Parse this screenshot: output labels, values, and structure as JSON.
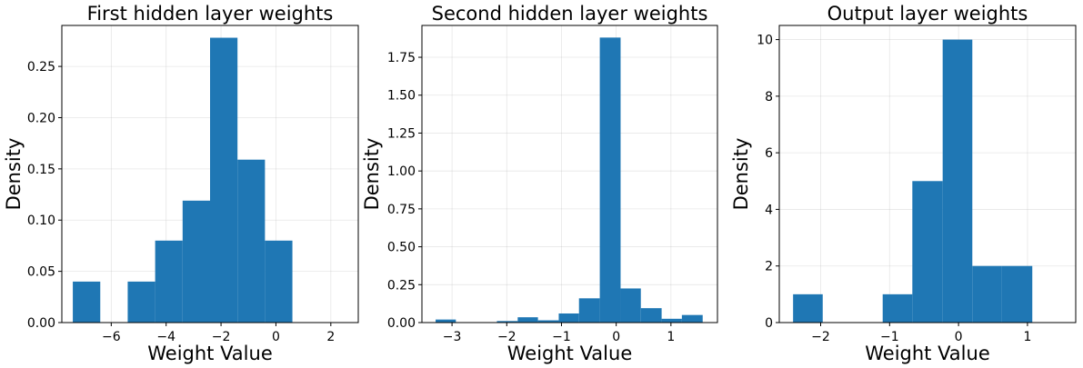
{
  "chart_data": [
    {
      "type": "bar",
      "title": "First hidden layer weights",
      "xlabel": "Weight Value",
      "ylabel": "Density",
      "xlim": [
        -7.8,
        3.0
      ],
      "ylim": [
        0,
        0.29
      ],
      "xticks": [
        -6,
        -4,
        -2,
        0,
        2
      ],
      "xtick_labels": [
        "−6",
        "−4",
        "−2",
        "0",
        "2"
      ],
      "yticks": [
        0,
        0.05,
        0.1,
        0.15,
        0.2,
        0.25
      ],
      "ytick_labels": [
        "0.00",
        "0.05",
        "0.10",
        "0.15",
        "0.20",
        "0.25"
      ],
      "grid": true,
      "color": "#1f77b4",
      "bins": [
        {
          "x0": -7.4,
          "x1": -6.4,
          "value": 0.04
        },
        {
          "x0": -6.4,
          "x1": -5.4,
          "value": 0.0
        },
        {
          "x0": -5.4,
          "x1": -4.4,
          "value": 0.04
        },
        {
          "x0": -4.4,
          "x1": -3.4,
          "value": 0.08
        },
        {
          "x0": -3.4,
          "x1": -2.4,
          "value": 0.119
        },
        {
          "x0": -2.4,
          "x1": -1.4,
          "value": 0.278
        },
        {
          "x0": -1.4,
          "x1": -0.4,
          "value": 0.159
        },
        {
          "x0": -0.4,
          "x1": 0.6,
          "value": 0.08
        }
      ]
    },
    {
      "type": "bar",
      "title": "Second hidden layer weights",
      "xlabel": "Weight Value",
      "ylabel": "Density",
      "xlim": [
        -3.55,
        1.85
      ],
      "ylim": [
        0,
        1.96
      ],
      "xticks": [
        -3,
        -2,
        -1,
        0,
        1
      ],
      "xtick_labels": [
        "−3",
        "−2",
        "−1",
        "0",
        "1"
      ],
      "yticks": [
        0,
        0.25,
        0.5,
        0.75,
        1.0,
        1.25,
        1.5,
        1.75
      ],
      "ytick_labels": [
        "0.00",
        "0.25",
        "0.50",
        "0.75",
        "1.00",
        "1.25",
        "1.50",
        "1.75"
      ],
      "grid": true,
      "color": "#1f77b4",
      "bins": [
        {
          "x0": -3.3,
          "x1": -2.93,
          "value": 0.02
        },
        {
          "x0": -2.93,
          "x1": -2.55,
          "value": 0.0
        },
        {
          "x0": -2.55,
          "x1": -2.18,
          "value": 0.0
        },
        {
          "x0": -2.18,
          "x1": -1.8,
          "value": 0.01
        },
        {
          "x0": -1.8,
          "x1": -1.43,
          "value": 0.035
        },
        {
          "x0": -1.43,
          "x1": -1.05,
          "value": 0.015
        },
        {
          "x0": -1.05,
          "x1": -0.68,
          "value": 0.06
        },
        {
          "x0": -0.68,
          "x1": -0.3,
          "value": 0.16
        },
        {
          "x0": -0.3,
          "x1": 0.08,
          "value": 1.88
        },
        {
          "x0": 0.08,
          "x1": 0.45,
          "value": 0.225
        },
        {
          "x0": 0.45,
          "x1": 0.83,
          "value": 0.095
        },
        {
          "x0": 0.83,
          "x1": 1.2,
          "value": 0.025
        },
        {
          "x0": 1.2,
          "x1": 1.58,
          "value": 0.05
        }
      ]
    },
    {
      "type": "bar",
      "title": "Output layer weights",
      "xlabel": "Weight Value",
      "ylabel": "Density",
      "xlim": [
        -2.6,
        1.7
      ],
      "ylim": [
        0,
        10.5
      ],
      "xticks": [
        -2,
        -1,
        0,
        1
      ],
      "xtick_labels": [
        "−2",
        "−1",
        "0",
        "1"
      ],
      "yticks": [
        0,
        2,
        4,
        6,
        8,
        10
      ],
      "ytick_labels": [
        "0",
        "2",
        "4",
        "6",
        "8",
        "10"
      ],
      "grid": true,
      "color": "#1f77b4",
      "bins": [
        {
          "x0": -2.4,
          "x1": -1.97,
          "value": 1
        },
        {
          "x0": -1.97,
          "x1": -1.53,
          "value": 0
        },
        {
          "x0": -1.53,
          "x1": -1.1,
          "value": 0
        },
        {
          "x0": -1.1,
          "x1": -0.67,
          "value": 1
        },
        {
          "x0": -0.67,
          "x1": -0.23,
          "value": 5
        },
        {
          "x0": -0.23,
          "x1": 0.2,
          "value": 10
        },
        {
          "x0": 0.2,
          "x1": 0.63,
          "value": 2
        },
        {
          "x0": 0.63,
          "x1": 1.07,
          "value": 2
        }
      ]
    }
  ]
}
